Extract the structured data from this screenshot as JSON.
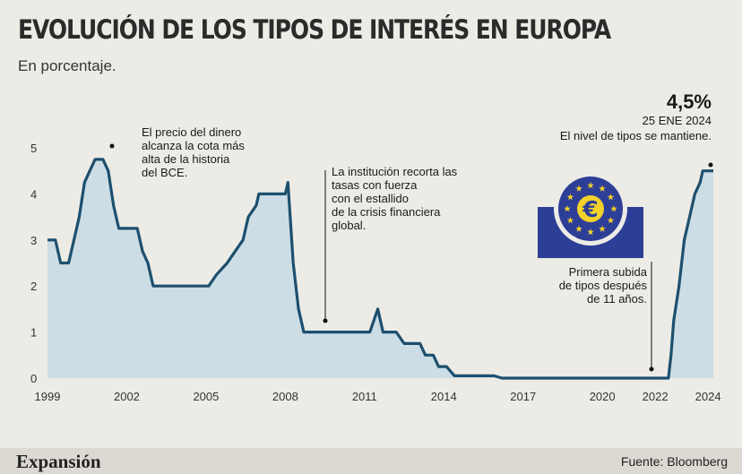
{
  "title": "EVOLUCIÓN DE LOS TIPOS DE INTERÉS EN EUROPA",
  "subtitle": "En porcentaje.",
  "annotations": {
    "a1": [
      "El precio del dinero",
      "alcanza la cota más",
      "alta de la historia",
      "del BCE."
    ],
    "a2": [
      "La institución recorta las",
      "tasas con fuerza",
      "con el estallido",
      "de la crisis financiera",
      "global."
    ],
    "a3": [
      "Primera subida",
      "de tipos después",
      "de 11 años."
    ],
    "peak_value": "4,5%",
    "peak_date": "25 ENE 2024",
    "peak_note": "El nivel de tipos se mantiene."
  },
  "footer": {
    "brand": "Expansión",
    "source": "Fuente: Bloomberg"
  },
  "colors": {
    "line": "#1d4f6e",
    "area": "#ccdde6",
    "ecb_blue": "#2d3e97",
    "ecb_gold": "#f2d22b"
  },
  "icons": {
    "ecb_logo": "euro-stars-logo-icon"
  },
  "chart_data": {
    "type": "area",
    "title": "EVOLUCIÓN DE LOS TIPOS DE INTERÉS EN EUROPA",
    "subtitle": "En porcentaje.",
    "xlabel": "",
    "ylabel": "",
    "xlim": [
      1999,
      2024.2
    ],
    "ylim": [
      0,
      5
    ],
    "x_ticks": [
      1999,
      2002,
      2005,
      2008,
      2011,
      2014,
      2017,
      2020,
      2022,
      2024
    ],
    "y_ticks": [
      0,
      1,
      2,
      3,
      4,
      5
    ],
    "grid": false,
    "series": [
      {
        "values": [
          [
            1999.0,
            3.0
          ],
          [
            1999.3,
            3.0
          ],
          [
            1999.5,
            2.5
          ],
          [
            1999.8,
            2.5
          ],
          [
            2000.0,
            3.0
          ],
          [
            2000.2,
            3.5
          ],
          [
            2000.4,
            4.25
          ],
          [
            2000.6,
            4.5
          ],
          [
            2000.8,
            4.75
          ],
          [
            2001.1,
            4.75
          ],
          [
            2001.3,
            4.5
          ],
          [
            2001.5,
            3.75
          ],
          [
            2001.7,
            3.25
          ],
          [
            2002.4,
            3.25
          ],
          [
            2002.6,
            2.75
          ],
          [
            2002.8,
            2.5
          ],
          [
            2003.0,
            2.0
          ],
          [
            2005.1,
            2.0
          ],
          [
            2005.4,
            2.25
          ],
          [
            2005.8,
            2.5
          ],
          [
            2006.1,
            2.75
          ],
          [
            2006.4,
            3.0
          ],
          [
            2006.6,
            3.5
          ],
          [
            2006.9,
            3.75
          ],
          [
            2007.0,
            4.0
          ],
          [
            2008.0,
            4.0
          ],
          [
            2008.1,
            4.25
          ],
          [
            2008.3,
            2.5
          ],
          [
            2008.5,
            1.5
          ],
          [
            2008.7,
            1.0
          ],
          [
            2011.2,
            1.0
          ],
          [
            2011.5,
            1.5
          ],
          [
            2011.7,
            1.0
          ],
          [
            2012.2,
            1.0
          ],
          [
            2012.5,
            0.75
          ],
          [
            2013.1,
            0.75
          ],
          [
            2013.3,
            0.5
          ],
          [
            2013.6,
            0.5
          ],
          [
            2013.8,
            0.25
          ],
          [
            2014.1,
            0.25
          ],
          [
            2014.4,
            0.05
          ],
          [
            2015.9,
            0.05
          ],
          [
            2016.2,
            0.0
          ],
          [
            2022.5,
            0.0
          ],
          [
            2022.6,
            0.5
          ],
          [
            2022.7,
            1.25
          ],
          [
            2022.9,
            2.0
          ],
          [
            2023.1,
            3.0
          ],
          [
            2023.3,
            3.5
          ],
          [
            2023.5,
            4.0
          ],
          [
            2023.7,
            4.25
          ],
          [
            2023.8,
            4.5
          ],
          [
            2024.2,
            4.5
          ]
        ]
      }
    ]
  }
}
